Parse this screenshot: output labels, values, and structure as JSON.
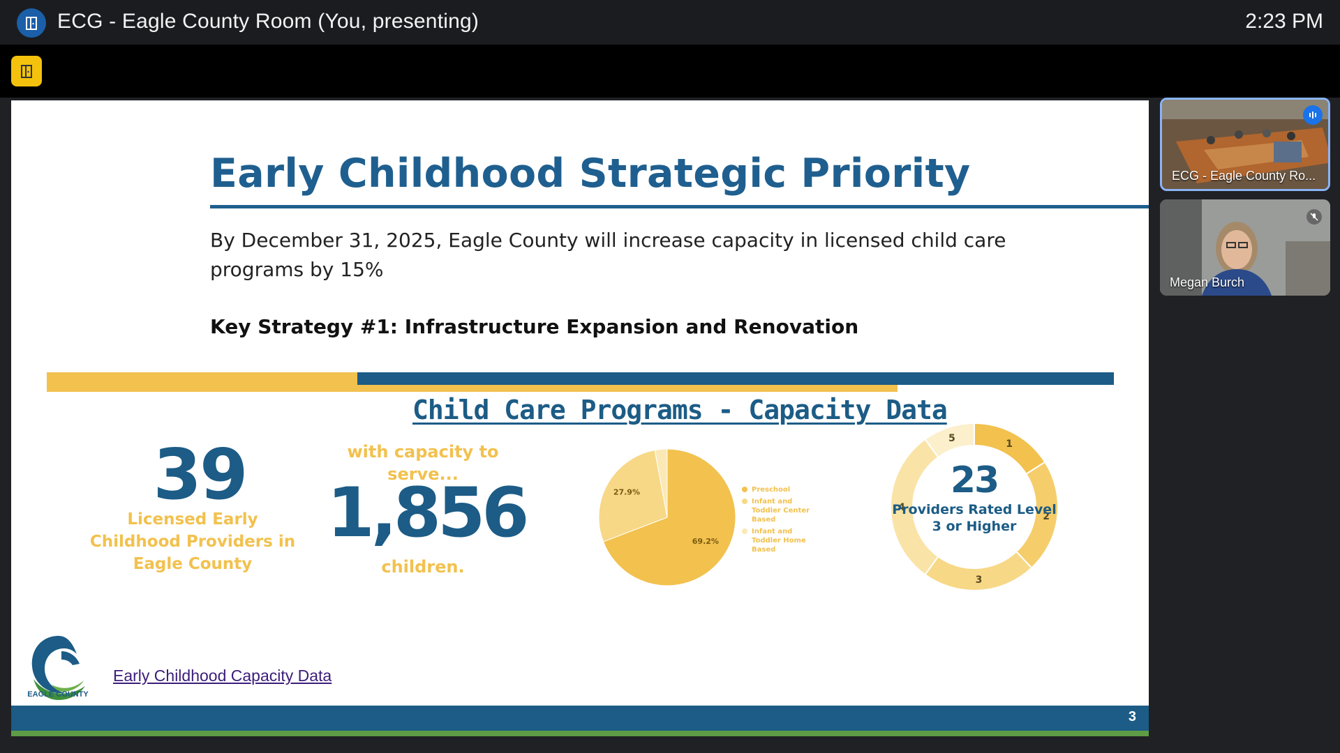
{
  "header": {
    "title": "ECG - Eagle County Room (You, presenting)",
    "time": "2:23 PM"
  },
  "slide": {
    "title": "Early Childhood Strategic Priority",
    "goal": "By December 31, 2025, Eagle County will increase capacity in licensed child care programs by 15%",
    "strategy": "Key Strategy #1: Infrastructure Expansion and Renovation",
    "capacity_title": "Child Care Programs - Capacity Data",
    "providers_count": "39",
    "providers_label": "Licensed Early Childhood Providers in Eagle County",
    "serve_label": "with capacity to serve...",
    "children_count": "1,856",
    "children_label": "children.",
    "rated_count": "23",
    "rated_label": "Providers Rated Level 3 or Higher",
    "logo_text": "EAGLE COUNTY",
    "link_text": "Early Childhood Capacity Data",
    "page_number": "3"
  },
  "chart_data": [
    {
      "type": "pie",
      "categories": [
        "Preschool",
        "Infant and Toddler Center Based",
        "Infant and Toddler Home Based"
      ],
      "values": [
        69.2,
        27.9,
        2.9
      ],
      "data_labels": [
        "69.2%",
        "27.9%",
        ""
      ],
      "colors": [
        "#f2c14e",
        "#f7d887",
        "#fbe9b5"
      ],
      "legend": "right"
    },
    {
      "type": "pie",
      "categories": [
        "1",
        "2",
        "3",
        "4",
        "5"
      ],
      "values": [
        16,
        22,
        22,
        30,
        10
      ],
      "colors": [
        "#f2c14e",
        "#f5cd6b",
        "#f7d887",
        "#fae3a6",
        "#fcefcc"
      ],
      "donut": true
    }
  ],
  "participants": [
    {
      "name": "ECG - Eagle County Ro..."
    },
    {
      "name": "Megan Burch"
    }
  ],
  "colors": {
    "brand_blue": "#1c5c86",
    "brand_yellow": "#f2c14e",
    "brand_green": "#5e9c45"
  }
}
